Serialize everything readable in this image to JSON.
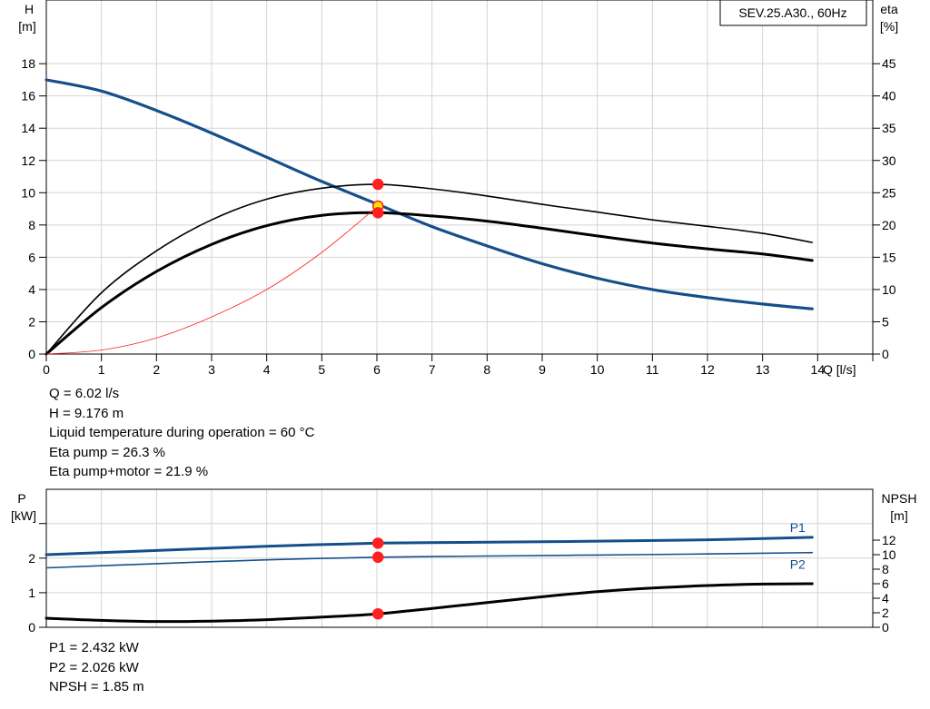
{
  "chart_data": [
    {
      "type": "line",
      "title": "SEV.25.A30., 60Hz",
      "xlabel": "Q [l/s]",
      "ylabel": [
        "H",
        "[m]"
      ],
      "y2label": [
        "eta",
        "[%]"
      ],
      "xlim": [
        0,
        15
      ],
      "ylim": [
        0,
        20
      ],
      "y2lim": [
        0,
        50
      ],
      "xticks": [
        "0",
        "1",
        "2",
        "3",
        "4",
        "5",
        "6",
        "7",
        "8",
        "9",
        "10",
        "11",
        "12",
        "13",
        "14"
      ],
      "yticks": [
        "0",
        "2",
        "4",
        "6",
        "8",
        "10",
        "12",
        "14",
        "16",
        "18"
      ],
      "y2ticks": [
        "0",
        "5",
        "10",
        "15",
        "20",
        "25",
        "30",
        "35",
        "40",
        "45"
      ],
      "grid": true,
      "series": [
        {
          "key": "H",
          "axis": "left",
          "color": "#154f8a",
          "width": 3.2,
          "x": [
            0,
            1,
            2,
            3,
            4,
            5,
            6,
            7,
            8,
            9,
            10,
            11,
            12,
            13,
            13.9
          ],
          "y": [
            17.0,
            16.3,
            15.1,
            13.7,
            12.2,
            10.7,
            9.3,
            7.9,
            6.7,
            5.6,
            4.7,
            4.0,
            3.5,
            3.1,
            2.8
          ]
        },
        {
          "key": "eta_pump",
          "axis": "right",
          "color": "#000000",
          "width": 1.6,
          "x": [
            0,
            1,
            2,
            3,
            4,
            5,
            6,
            7,
            8,
            9,
            10,
            11,
            12,
            13,
            13.9
          ],
          "y": [
            0,
            9.5,
            16.0,
            20.8,
            24.0,
            25.7,
            26.3,
            25.6,
            24.5,
            23.2,
            22.0,
            20.8,
            19.8,
            18.7,
            17.3
          ]
        },
        {
          "key": "eta_pump_motor",
          "axis": "right",
          "color": "#000000",
          "width": 3,
          "x": [
            0,
            1,
            2,
            3,
            4,
            5,
            6,
            7,
            8,
            9,
            10,
            11,
            12,
            13,
            13.9
          ],
          "y": [
            0,
            7.2,
            12.8,
            17.0,
            19.9,
            21.5,
            21.9,
            21.4,
            20.6,
            19.5,
            18.3,
            17.2,
            16.3,
            15.5,
            14.5
          ]
        },
        {
          "key": "system_curve",
          "axis": "left",
          "color": "#ff2020",
          "width": 0.8,
          "x": [
            0,
            1,
            2,
            3,
            4,
            5,
            6.02
          ],
          "y": [
            0,
            0.25,
            1.0,
            2.3,
            4.0,
            6.3,
            9.176
          ]
        }
      ],
      "markers": [
        {
          "x": 6.02,
          "y": 9.176,
          "axis": "left",
          "fill": "#ffe600",
          "stroke": "#ff2020"
        },
        {
          "x": 6.02,
          "y": 26.3,
          "axis": "right",
          "fill": "#ff2020",
          "stroke": "#ff2020"
        },
        {
          "x": 6.02,
          "y": 21.9,
          "axis": "right",
          "fill": "#ff2020",
          "stroke": "#ff2020"
        }
      ]
    },
    {
      "type": "line",
      "ylabel": [
        "P",
        "[kW]"
      ],
      "y2label": [
        "NPSH",
        "[m]"
      ],
      "xlim": [
        0,
        15
      ],
      "ylim": [
        0,
        3.1
      ],
      "y2lim": [
        0,
        19
      ],
      "yticks": [
        "0",
        "1",
        "2"
      ],
      "y2ticks": [
        "0",
        "2",
        "4",
        "6",
        "8",
        "10",
        "12"
      ],
      "grid": true,
      "series": [
        {
          "key": "P1",
          "name": "P1",
          "axis": "left",
          "color": "#154f8a",
          "width": 3,
          "x": [
            0,
            2,
            4,
            6.02,
            8,
            10,
            12,
            13.9
          ],
          "y": [
            2.1,
            2.22,
            2.34,
            2.432,
            2.46,
            2.49,
            2.53,
            2.6
          ]
        },
        {
          "key": "P2",
          "name": "P2",
          "axis": "left",
          "color": "#154f8a",
          "width": 1.6,
          "x": [
            0,
            2,
            4,
            6.02,
            8,
            10,
            12,
            13.9
          ],
          "y": [
            1.72,
            1.84,
            1.95,
            2.026,
            2.06,
            2.09,
            2.12,
            2.16
          ]
        },
        {
          "key": "NPSH",
          "axis": "right",
          "color": "#000000",
          "width": 3,
          "x": [
            0,
            1,
            2,
            3,
            4,
            5,
            6.02,
            7,
            8,
            9,
            10,
            11,
            12,
            13,
            13.9
          ],
          "y": [
            1.25,
            0.95,
            0.8,
            0.85,
            1.05,
            1.4,
            1.85,
            2.6,
            3.4,
            4.2,
            4.9,
            5.4,
            5.75,
            5.95,
            6.0
          ]
        }
      ],
      "markers": [
        {
          "x": 6.02,
          "y": 2.432,
          "axis": "left",
          "fill": "#ff2020",
          "stroke": "#ff2020"
        },
        {
          "x": 6.02,
          "y": 2.026,
          "axis": "left",
          "fill": "#ff2020",
          "stroke": "#ff2020"
        },
        {
          "x": 6.02,
          "y": 1.85,
          "axis": "right",
          "fill": "#ff2020",
          "stroke": "#ff2020"
        }
      ]
    }
  ],
  "duty_info": [
    "Q = 6.02 l/s",
    "H = 9.176 m",
    "Liquid temperature during operation = 60 °C",
    "Eta pump = 26.3 %",
    "Eta pump+motor = 21.9 %"
  ],
  "power_info": [
    "P1 = 2.432 kW",
    "P2 = 2.026 kW",
    "NPSH = 1.85 m"
  ]
}
